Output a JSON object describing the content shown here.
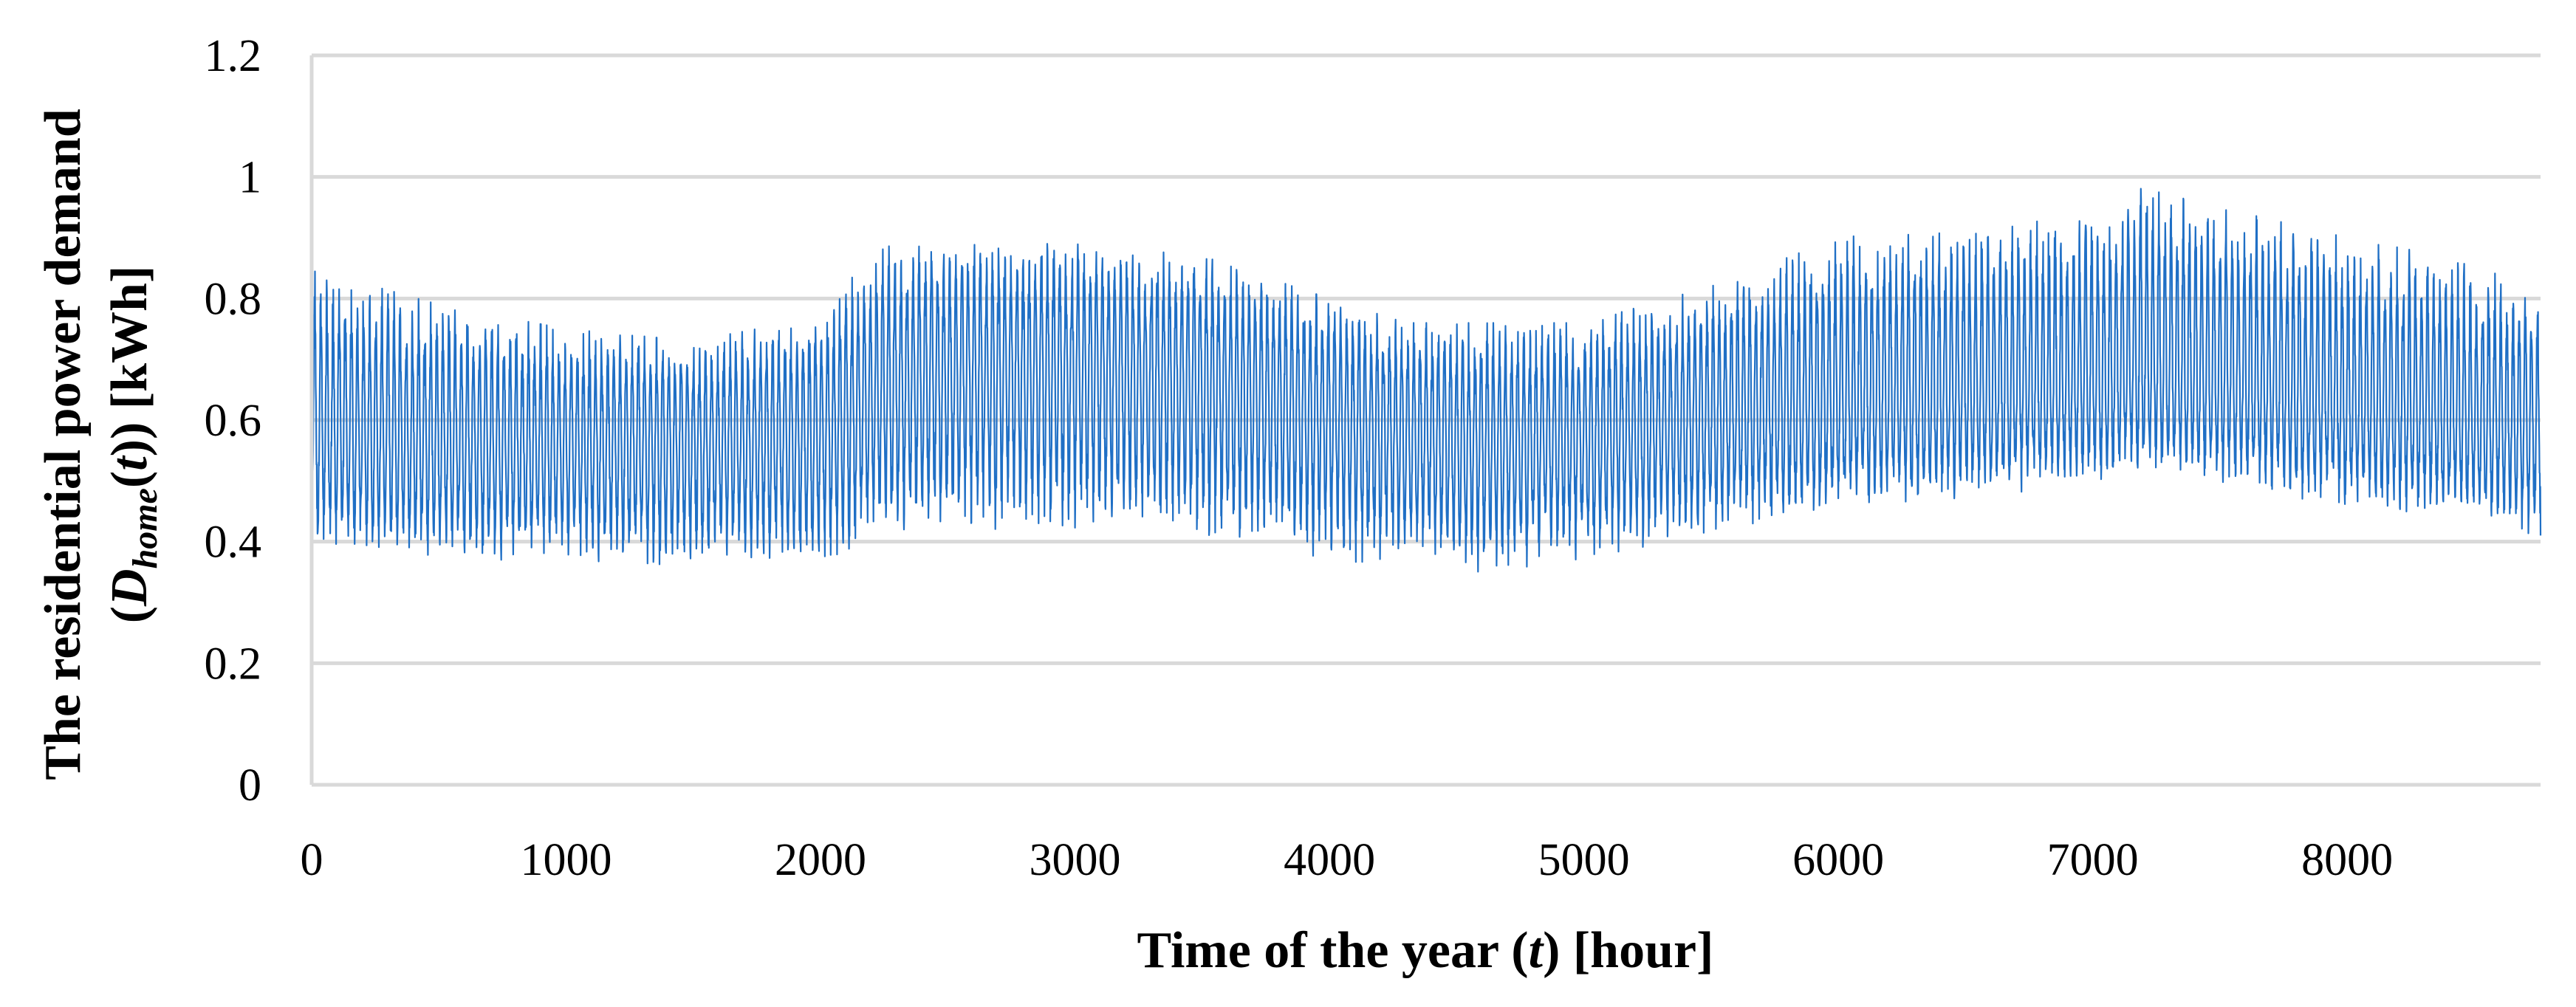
{
  "chart_data": {
    "type": "line",
    "title": "",
    "xlabel_parts": [
      "Time of the year (",
      "t",
      ") [hour]"
    ],
    "ylabel_line1": "The residential power demand",
    "ylabel_line2_parts": [
      "(",
      "D",
      "home",
      "(",
      "t",
      ")) [kWh]"
    ],
    "xlim": [
      0,
      8760
    ],
    "ylim": [
      0,
      1.2
    ],
    "x_ticks": [
      "0",
      "1000",
      "2000",
      "3000",
      "4000",
      "5000",
      "6000",
      "7000",
      "8000"
    ],
    "y_ticks": [
      "0",
      "0.2",
      "0.4",
      "0.6",
      "0.8",
      "1",
      "1.2"
    ],
    "grid": "horizontal",
    "legend": "none",
    "series": [
      {
        "color": "#1f6fc5",
        "x": [
          0,
          500,
          1000,
          1500,
          2000,
          2250,
          2500,
          3000,
          3500,
          4000,
          4300,
          4600,
          5000,
          5500,
          6000,
          6500,
          7000,
          7200,
          7500,
          8000,
          8500,
          8760
        ],
        "baseline": [
          0.58,
          0.56,
          0.55,
          0.56,
          0.57,
          0.64,
          0.67,
          0.68,
          0.66,
          0.6,
          0.57,
          0.56,
          0.57,
          0.6,
          0.63,
          0.64,
          0.65,
          0.68,
          0.66,
          0.62,
          0.6,
          0.58
        ],
        "upper": [
          0.85,
          0.79,
          0.75,
          0.73,
          0.77,
          0.9,
          0.89,
          0.89,
          0.87,
          0.8,
          0.76,
          0.76,
          0.76,
          0.82,
          0.9,
          0.92,
          0.94,
          1.0,
          0.95,
          0.9,
          0.86,
          0.8
        ],
        "lower": [
          0.4,
          0.38,
          0.38,
          0.37,
          0.37,
          0.42,
          0.43,
          0.43,
          0.42,
          0.38,
          0.37,
          0.36,
          0.38,
          0.42,
          0.45,
          0.48,
          0.5,
          0.52,
          0.5,
          0.47,
          0.44,
          0.42
        ]
      }
    ]
  }
}
